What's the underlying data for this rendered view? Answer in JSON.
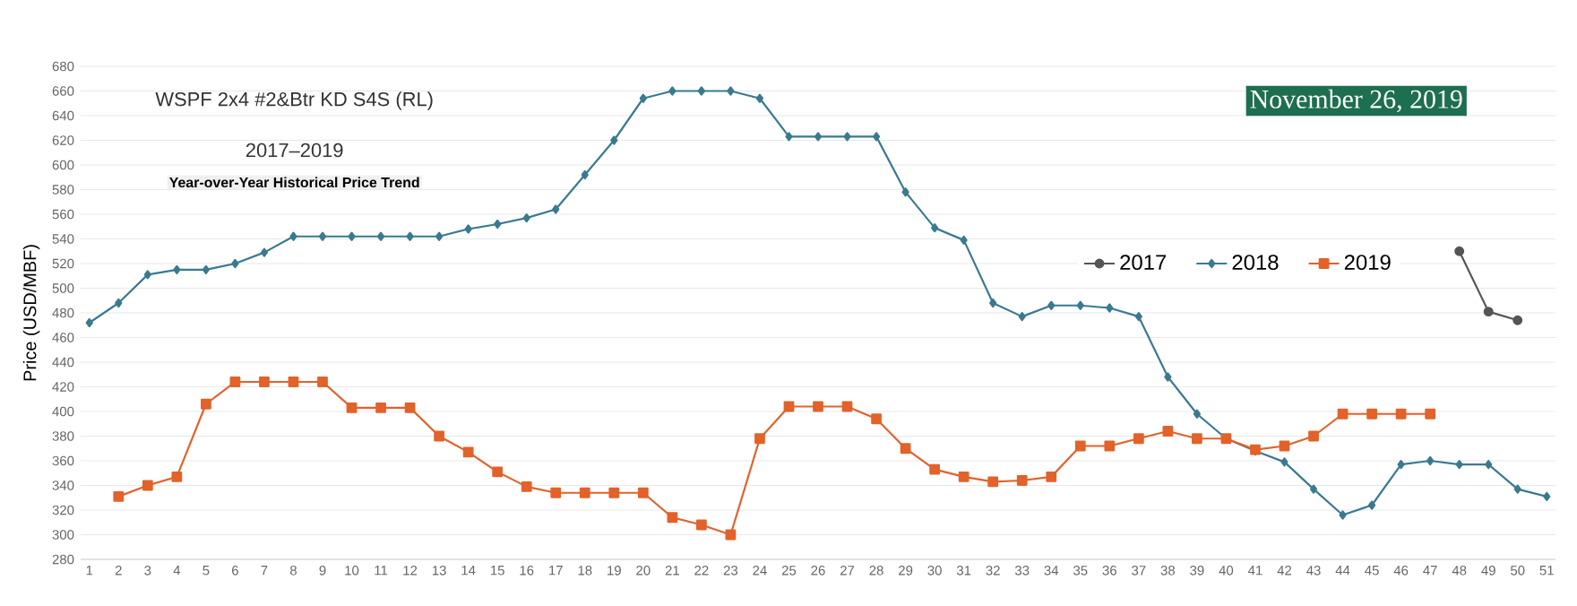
{
  "chart_data": {
    "type": "line",
    "title": "WSPF 2x4 #2&Btr KD S4S (RL)",
    "subtitle": "2017–2019",
    "annotations": [
      "Year-over-Year Historical Price Trend",
      "November 26, 2019"
    ],
    "ylabel": "Price (USD/MBF)",
    "categories": [
      "1",
      "2",
      "3",
      "4",
      "5",
      "6",
      "7",
      "8",
      "9",
      "10",
      "11",
      "12",
      "13",
      "14",
      "15",
      "16",
      "17",
      "18",
      "19",
      "20",
      "21",
      "22",
      "23",
      "24",
      "25",
      "26",
      "27",
      "28",
      "29",
      "30",
      "31",
      "32",
      "33",
      "34",
      "35",
      "36",
      "37",
      "38",
      "39",
      "40",
      "41",
      "42",
      "43",
      "44",
      "45",
      "46",
      "47",
      "48",
      "49",
      "50",
      "51"
    ],
    "series": [
      {
        "name": "2017",
        "color": "#555555",
        "marker": "circle",
        "values": [
          null,
          null,
          null,
          null,
          null,
          null,
          null,
          null,
          null,
          null,
          null,
          null,
          null,
          null,
          null,
          null,
          null,
          null,
          null,
          null,
          null,
          null,
          null,
          null,
          null,
          null,
          null,
          null,
          null,
          null,
          null,
          null,
          null,
          null,
          null,
          null,
          null,
          null,
          null,
          null,
          null,
          null,
          null,
          null,
          null,
          null,
          null,
          530,
          481,
          474,
          null
        ]
      },
      {
        "name": "2018",
        "color": "#3a7a90",
        "marker": "diamond",
        "values": [
          472,
          488,
          511,
          515,
          515,
          520,
          529,
          542,
          542,
          542,
          542,
          542,
          542,
          548,
          552,
          557,
          564,
          592,
          620,
          654,
          660,
          660,
          660,
          654,
          623,
          623,
          623,
          623,
          578,
          549,
          539,
          488,
          477,
          486,
          486,
          484,
          477,
          428,
          398,
          378,
          368,
          359,
          337,
          316,
          324,
          357,
          360,
          357,
          357,
          337,
          331
        ]
      },
      {
        "name": "2019",
        "color": "#e2622a",
        "marker": "square",
        "values": [
          null,
          331,
          340,
          347,
          406,
          424,
          424,
          424,
          424,
          403,
          403,
          403,
          380,
          367,
          351,
          339,
          334,
          334,
          334,
          334,
          314,
          308,
          300,
          378,
          404,
          404,
          404,
          394,
          370,
          353,
          347,
          343,
          344,
          347,
          372,
          372,
          378,
          384,
          378,
          378,
          369,
          372,
          380,
          398,
          398,
          398,
          398,
          null,
          null,
          null,
          null
        ]
      }
    ],
    "ylim": [
      280,
      680
    ],
    "yticks": [
      280,
      300,
      320,
      340,
      360,
      380,
      400,
      420,
      440,
      460,
      480,
      500,
      520,
      540,
      560,
      580,
      600,
      620,
      640,
      660,
      680
    ],
    "grid": "y",
    "legend": "right",
    "line_style": "solid"
  }
}
